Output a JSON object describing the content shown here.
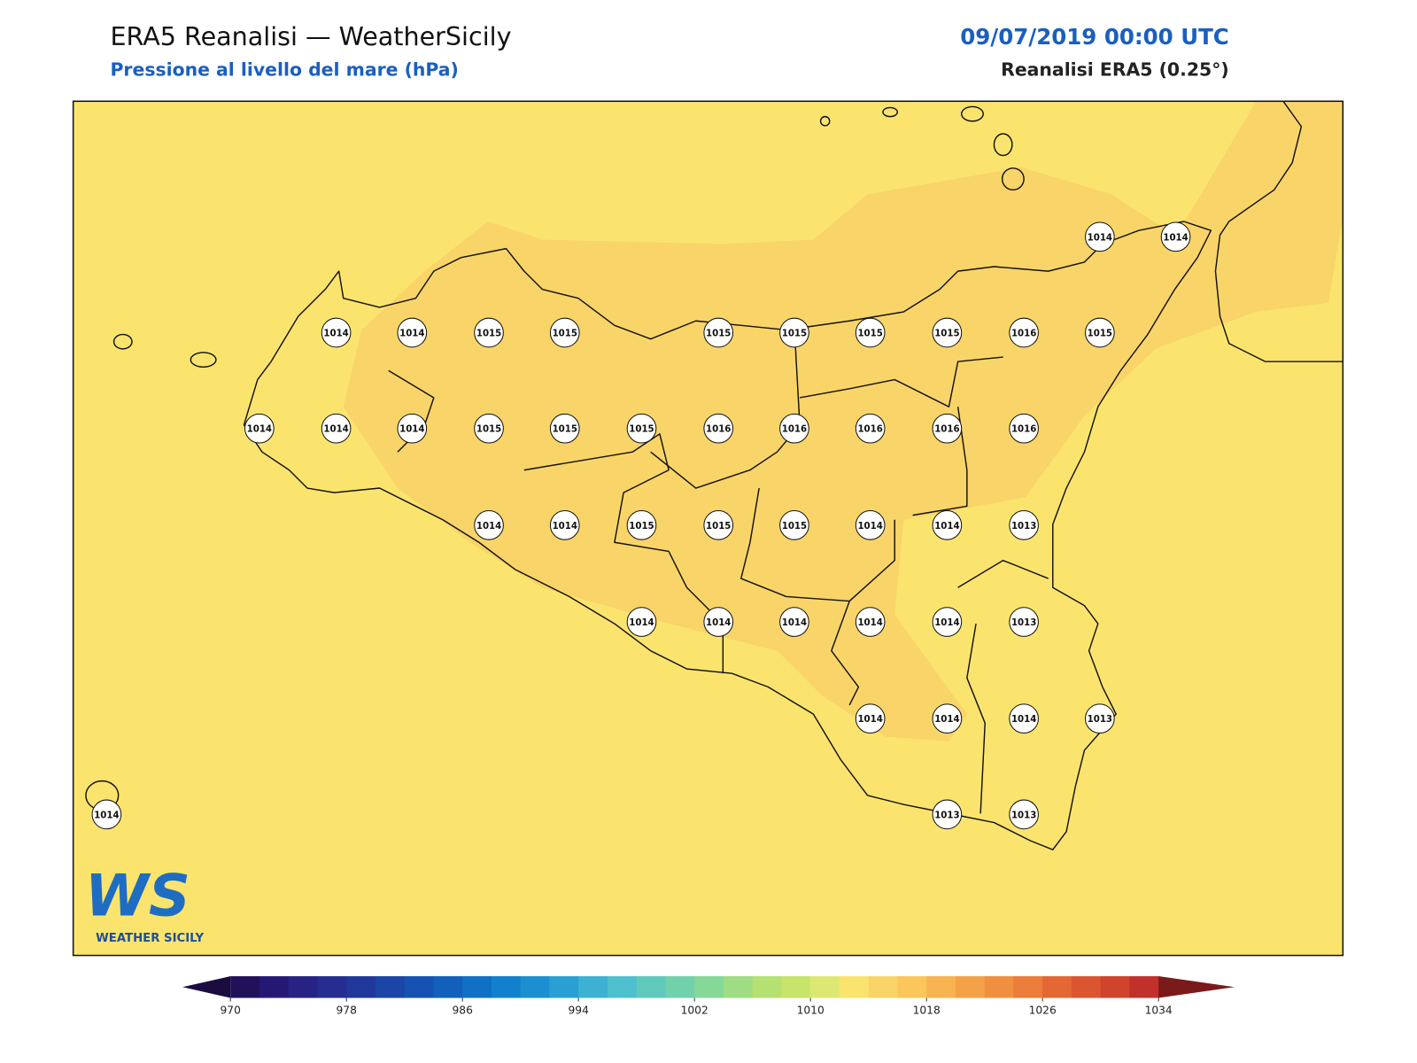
{
  "header": {
    "title": "ERA5 Reanalisi — WeatherSicily",
    "subtitle": "Pressione al livello del mare (hPa)",
    "datetime": "09/07/2019 00:00 UTC",
    "source": "Reanalisi ERA5 (0.25°)"
  },
  "stations": [
    1014,
    1014,
    1014,
    1014,
    1015,
    1015,
    1015,
    1015,
    1015,
    1015,
    1016,
    1015,
    1014,
    1014,
    1014,
    1015,
    1015,
    1015,
    1016,
    1016,
    1016,
    1016,
    1016,
    1014,
    1014,
    1015,
    1015,
    1015,
    1014,
    1014,
    1013,
    1014,
    1014,
    1014,
    1014,
    1014,
    1013,
    1014,
    1014,
    1014,
    1013,
    1014,
    1013,
    1013
  ],
  "colorbar": {
    "range": [
      970,
      1034
    ],
    "ticks": [
      970,
      978,
      986,
      994,
      1002,
      1010,
      1018,
      1026,
      1034
    ],
    "colors": [
      "#22105a",
      "#251874",
      "#272283",
      "#252d91",
      "#20389c",
      "#1b45a6",
      "#1652b1",
      "#1260bb",
      "#0f70c6",
      "#1180cd",
      "#1a90d1",
      "#29a0d3",
      "#3cb1d2",
      "#4ebfcc",
      "#5fcabc",
      "#70d1ab",
      "#85d898",
      "#9edd83",
      "#b4e171",
      "#c8e46b",
      "#dde872",
      "#fbe46e",
      "#f9d468",
      "#fbc65a",
      "#f7b450",
      "#f4a248",
      "#f08f40",
      "#eb7c39",
      "#e46834",
      "#db5630",
      "#d0432c",
      "#c1302a"
    ],
    "extend_colors": [
      "#1a0c3f",
      "#7a1a1a"
    ]
  },
  "logo": {
    "mark": "WS",
    "name": "WEATHER SICILY"
  }
}
